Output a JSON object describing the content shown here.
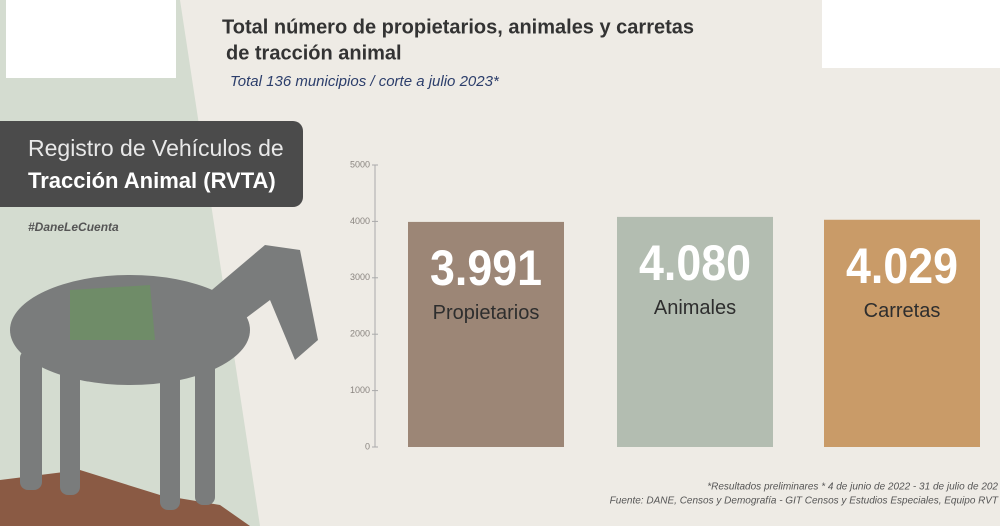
{
  "chart_data": {
    "type": "bar",
    "title": [
      "Total número de propietarios, animales y carretas",
      "de tracción animal"
    ],
    "subtitle": "Total 136 municipios / corte a julio 2023*",
    "panel_title": [
      "Registro de Vehículos de",
      "Tracción Animal (RVTA)"
    ],
    "hashtag": "#DaneLeCuenta",
    "categories": [
      "Propietarios",
      "Animales",
      "Carretas"
    ],
    "values": [
      3991,
      4080,
      4029
    ],
    "value_labels": [
      "3.991",
      "4.080",
      "4.029"
    ],
    "colors": [
      "#9c8676",
      "#b3bdb1",
      "#c99b68"
    ],
    "ylim": [
      0,
      5000
    ],
    "yticks": [
      0,
      1000,
      2000,
      3000,
      4000,
      5000
    ],
    "notes": [
      "*Resultados preliminares * 4 de junio de 2022 - 31 de julio de 202",
      "Fuente: DANE, Censos y Demografía - GIT Censos y Estudios Especiales, Equipo RVT"
    ]
  }
}
